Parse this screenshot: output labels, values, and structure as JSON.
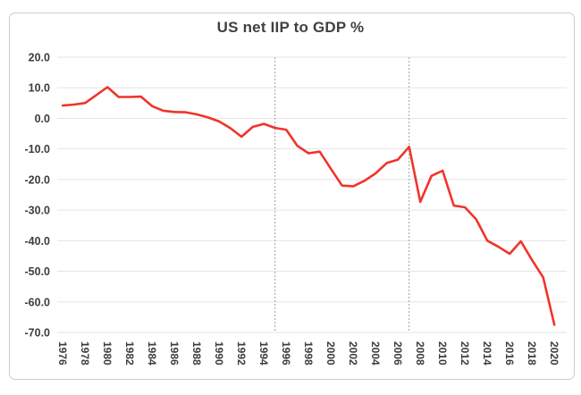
{
  "title": "US net IIP to GDP %",
  "chart_data": {
    "type": "line",
    "title": "US net IIP to GDP %",
    "xlabel": "",
    "ylabel": "",
    "x_start_year": 1976,
    "x_end_year": 2020,
    "x": [
      1976,
      1977,
      1978,
      1979,
      1980,
      1981,
      1982,
      1983,
      1984,
      1985,
      1986,
      1987,
      1988,
      1989,
      1990,
      1991,
      1992,
      1993,
      1994,
      1995,
      1996,
      1997,
      1998,
      1999,
      2000,
      2001,
      2002,
      2003,
      2004,
      2005,
      2006,
      2007,
      2008,
      2009,
      2010,
      2011,
      2012,
      2013,
      2014,
      2015,
      2016,
      2017,
      2018,
      2019,
      2020
    ],
    "series": [
      {
        "name": "US net IIP to GDP %",
        "values": [
          4.2,
          4.5,
          5.0,
          7.6,
          10.2,
          7.0,
          7.0,
          7.1,
          4.0,
          2.5,
          2.1,
          2.0,
          1.3,
          0.3,
          -1.0,
          -3.2,
          -6.0,
          -2.8,
          -1.8,
          -3.1,
          -3.7,
          -9.0,
          -11.4,
          -10.9,
          -16.5,
          -22.0,
          -22.2,
          -20.4,
          -18.0,
          -14.6,
          -13.5,
          -9.3,
          -27.3,
          -18.8,
          -17.1,
          -28.5,
          -29.1,
          -33.0,
          -40.0,
          -42.0,
          -44.3,
          -40.2,
          -46.3,
          -52.0,
          -67.5
        ]
      }
    ],
    "ylim": [
      -70,
      20
    ],
    "y_ticks": [
      20,
      10,
      0,
      -10,
      -20,
      -30,
      -40,
      -50,
      -60,
      -70
    ],
    "y_tick_labels": [
      "20.0",
      "10.0",
      "0.0",
      "-10.0",
      "-20.0",
      "-30.0",
      "-40.0",
      "-50.0",
      "-60.0",
      "-70.0"
    ],
    "x_tick_years": [
      1976,
      1978,
      1980,
      1982,
      1984,
      1986,
      1988,
      1990,
      1992,
      1994,
      1996,
      1998,
      2000,
      2002,
      2004,
      2006,
      2008,
      2010,
      2012,
      2014,
      2016,
      2018,
      2020
    ],
    "x_tick_labels": [
      "1976",
      "1978",
      "1980",
      "1982",
      "1984",
      "1986",
      "1988",
      "1990",
      "1992",
      "1994",
      "1996",
      "1998",
      "2000",
      "2002",
      "2004",
      "2006",
      "2008",
      "2010",
      "2012",
      "2014",
      "2016",
      "2018",
      "2020"
    ],
    "reference_lines": [
      {
        "x_year": 1995,
        "style": "dashed"
      },
      {
        "x_year": 2007,
        "style": "dashed"
      }
    ],
    "grid": "horizontal",
    "legend_position": "none"
  },
  "style_colors": {
    "line_color": "#f0342a",
    "gridline_color": "#e5e5e5",
    "reference_line_color": "#a0a0a0",
    "axis_label_color": "#3d3d3d",
    "title_color": "#404040",
    "frame_border_color": "#cccccc",
    "background_color": "#ffffff"
  }
}
